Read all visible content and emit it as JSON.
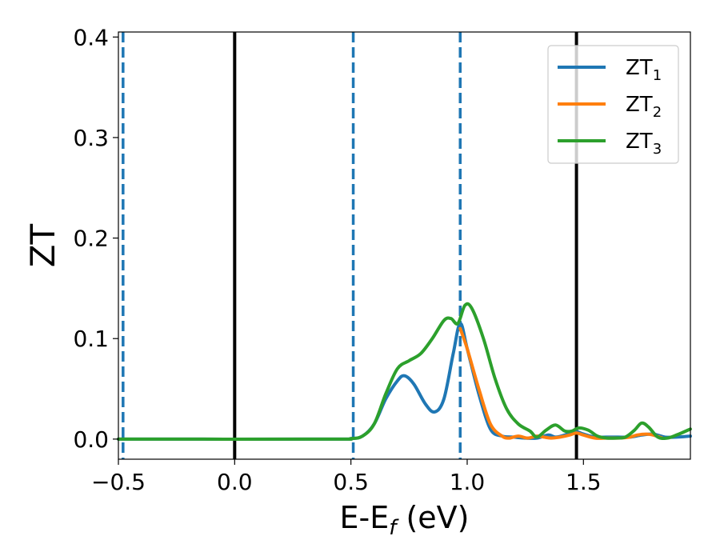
{
  "chart_data": {
    "type": "line",
    "xlabel": {
      "main": "E-E",
      "sub": "f",
      "suffix": " (eV)"
    },
    "ylabel": "ZT",
    "xlim": [
      -0.5,
      1.96
    ],
    "ylim": [
      -0.02,
      0.405
    ],
    "xticks": [
      {
        "value": -0.5,
        "label": "−0.5"
      },
      {
        "value": 0.0,
        "label": "0.0"
      },
      {
        "value": 0.5,
        "label": "0.5"
      },
      {
        "value": 1.0,
        "label": "1.0"
      },
      {
        "value": 1.5,
        "label": "1.5"
      }
    ],
    "yticks": [
      {
        "value": 0.0,
        "label": "0.0"
      },
      {
        "value": 0.1,
        "label": "0.1"
      },
      {
        "value": 0.2,
        "label": "0.2"
      },
      {
        "value": 0.3,
        "label": "0.3"
      },
      {
        "value": 0.4,
        "label": "0.4"
      }
    ],
    "grid": false,
    "legend_position": "top-right",
    "vlines": [
      {
        "x": -0.48,
        "style": "dashed",
        "color": "#1f77b4"
      },
      {
        "x": 0.0,
        "style": "solid",
        "color": "#000000"
      },
      {
        "x": 0.51,
        "style": "dashed",
        "color": "#1f77b4"
      },
      {
        "x": 0.97,
        "style": "dashed",
        "color": "#1f77b4"
      },
      {
        "x": 1.47,
        "style": "solid",
        "color": "#000000"
      }
    ],
    "series": [
      {
        "name": "ZT",
        "sub": "1",
        "color": "#1f77b4",
        "x": [
          -0.5,
          0.4,
          0.5,
          0.55,
          0.6,
          0.65,
          0.7,
          0.73,
          0.77,
          0.82,
          0.86,
          0.9,
          0.94,
          0.97,
          1.0,
          1.05,
          1.1,
          1.15,
          1.2,
          1.25,
          1.3,
          1.35,
          1.38,
          1.42,
          1.46,
          1.5,
          1.55,
          1.6,
          1.65,
          1.7,
          1.75,
          1.8,
          1.85,
          1.9,
          1.96
        ],
        "y": [
          0.0,
          0.0,
          0.0005,
          0.003,
          0.015,
          0.04,
          0.058,
          0.063,
          0.055,
          0.035,
          0.027,
          0.04,
          0.085,
          0.115,
          0.09,
          0.045,
          0.01,
          0.003,
          0.002,
          0.001,
          0.001,
          0.004,
          0.002,
          0.004,
          0.008,
          0.005,
          0.002,
          0.002,
          0.002,
          0.002,
          0.004,
          0.005,
          0.002,
          0.002,
          0.003
        ]
      },
      {
        "name": "ZT",
        "sub": "2",
        "color": "#ff7f0e",
        "x": [
          0.97,
          1.0,
          1.05,
          1.1,
          1.15,
          1.18,
          1.22,
          1.26,
          1.3,
          1.33,
          1.36,
          1.4,
          1.44,
          1.47,
          1.5,
          1.55,
          1.6,
          1.65,
          1.7,
          1.73,
          1.77,
          1.8,
          1.84
        ],
        "y": [
          0.11,
          0.09,
          0.05,
          0.015,
          0.003,
          0.001,
          0.003,
          0.001,
          0.003,
          0.002,
          0.001,
          0.002,
          0.004,
          0.006,
          0.004,
          0.001,
          0.001,
          0.001,
          0.002,
          0.004,
          0.005,
          0.004,
          0.001
        ]
      },
      {
        "name": "ZT",
        "sub": "3",
        "color": "#2ca02c",
        "x": [
          -0.5,
          0.4,
          0.5,
          0.55,
          0.6,
          0.65,
          0.7,
          0.75,
          0.8,
          0.85,
          0.9,
          0.93,
          0.96,
          0.99,
          1.02,
          1.07,
          1.12,
          1.17,
          1.22,
          1.27,
          1.3,
          1.34,
          1.38,
          1.42,
          1.45,
          1.48,
          1.52,
          1.56,
          1.6,
          1.64,
          1.68,
          1.72,
          1.75,
          1.78,
          1.82,
          1.86,
          1.9,
          1.96
        ],
        "y": [
          0.0,
          0.0,
          0.0005,
          0.003,
          0.015,
          0.045,
          0.07,
          0.078,
          0.085,
          0.1,
          0.118,
          0.12,
          0.115,
          0.133,
          0.13,
          0.1,
          0.06,
          0.03,
          0.015,
          0.008,
          0.002,
          0.009,
          0.014,
          0.008,
          0.008,
          0.011,
          0.009,
          0.003,
          0.001,
          0.001,
          0.002,
          0.009,
          0.016,
          0.012,
          0.002,
          0.001,
          0.004,
          0.01
        ]
      }
    ]
  }
}
